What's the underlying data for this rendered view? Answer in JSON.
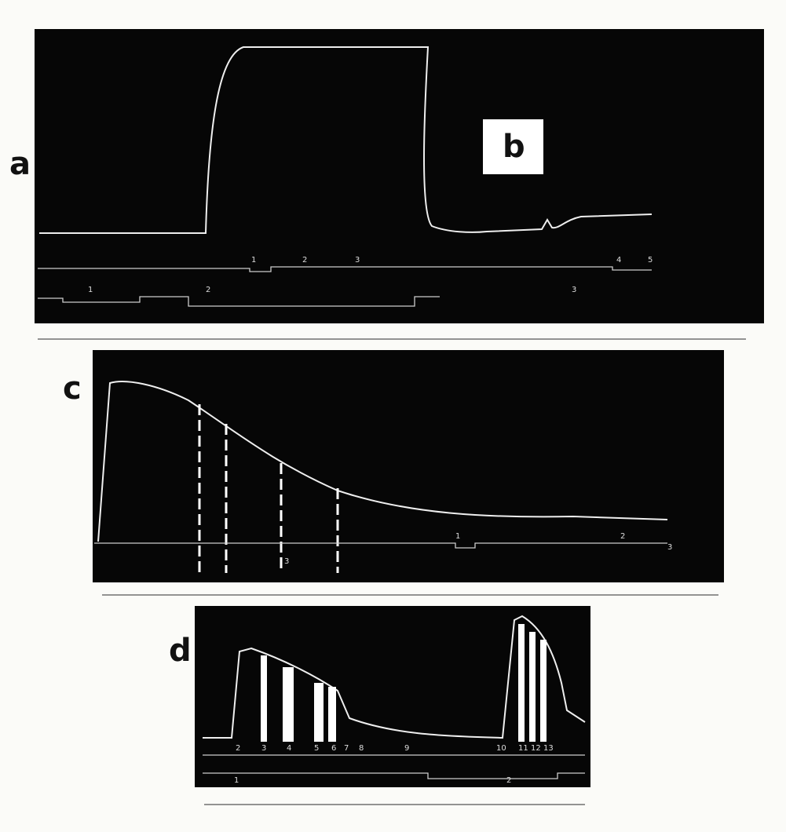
{
  "panels": [
    {
      "label": "a",
      "inset": "b",
      "upper_markers": [
        "1",
        "2",
        "3",
        "4",
        "5"
      ],
      "lower_markers": [
        "1",
        "2",
        "3"
      ]
    },
    {
      "label": "c",
      "upper_markers": [
        "1",
        "2",
        "3"
      ],
      "lower_markers": [
        "3"
      ]
    },
    {
      "label": "d",
      "upper_markers": [
        "2",
        "3",
        "4",
        "5",
        "6",
        "7",
        "8",
        "9",
        "10",
        "11",
        "12",
        "13"
      ],
      "lower_markers": [
        "1",
        "2"
      ]
    }
  ]
}
